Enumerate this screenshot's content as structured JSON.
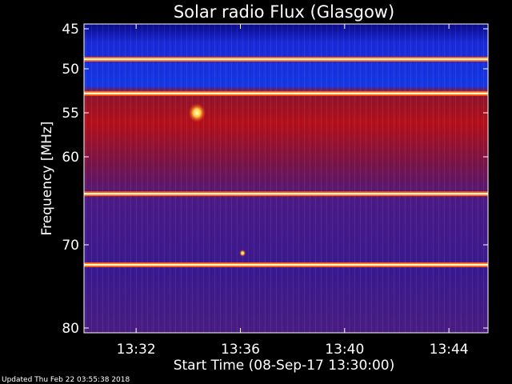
{
  "chart_data": {
    "type": "heatmap",
    "title": "Solar radio Flux (Glasgow)",
    "xlabel": "Start Time (08-Sep-17 13:30:00)",
    "ylabel": "Frequency [MHz]",
    "y_ticks": [
      "45",
      "50",
      "55",
      "60",
      "70",
      "80"
    ],
    "x_ticks": [
      "13:32",
      "13:36",
      "13:40",
      "13:44"
    ],
    "colormap": [
      "#000000",
      "#1a0066",
      "#3300cc",
      "#0033ff",
      "#6600aa",
      "#cc0000",
      "#ff6600",
      "#ffff99",
      "#ffffff"
    ],
    "bright_bands_mhz": [
      48.8,
      52.8,
      64.2,
      72.4
    ],
    "blue_region_mhz": [
      45,
      52.5
    ],
    "red_region_mhz": [
      52.5,
      63
    ],
    "burst_events": [
      {
        "time": "13:34:20",
        "freq_mhz": 55
      },
      {
        "time": "13:36:05",
        "freq_mhz": 71
      }
    ]
  },
  "footer": "Updated Thu Feb 22 03:55:38 2018"
}
